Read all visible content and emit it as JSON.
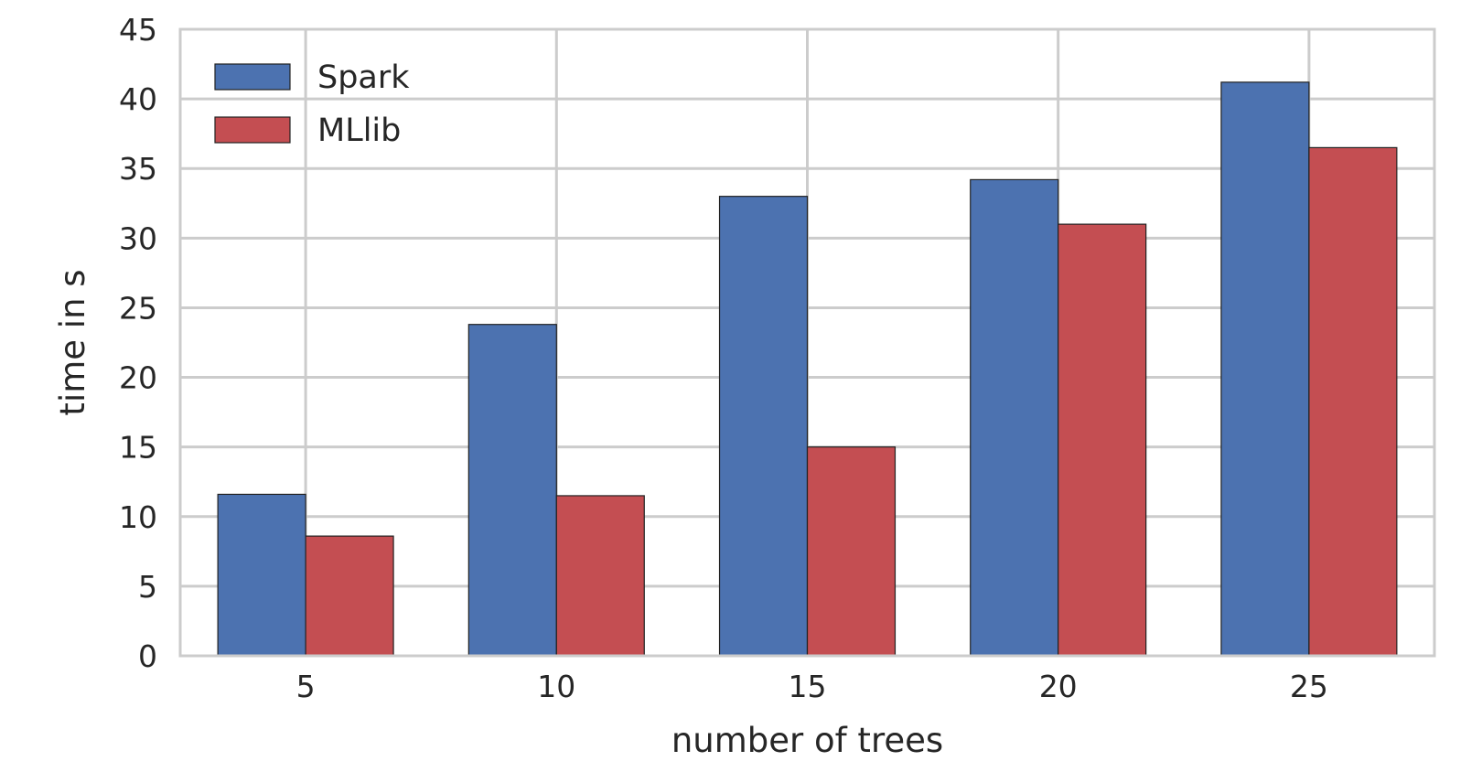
{
  "chart_data": {
    "type": "bar",
    "title": "",
    "xlabel": "number of trees",
    "ylabel": "time in s",
    "categories": [
      "5",
      "10",
      "15",
      "20",
      "25"
    ],
    "series": [
      {
        "name": "Spark",
        "color": "#4c72b0",
        "values": [
          11.6,
          23.8,
          33.0,
          34.2,
          41.2
        ]
      },
      {
        "name": "MLlib",
        "color": "#c44e52",
        "values": [
          8.6,
          11.5,
          15.0,
          31.0,
          36.5
        ]
      }
    ],
    "ylim": [
      0,
      45
    ],
    "yticks": [
      0,
      5,
      10,
      15,
      20,
      25,
      30,
      35,
      40,
      45
    ],
    "grid": true,
    "legend_position": "top-left"
  }
}
